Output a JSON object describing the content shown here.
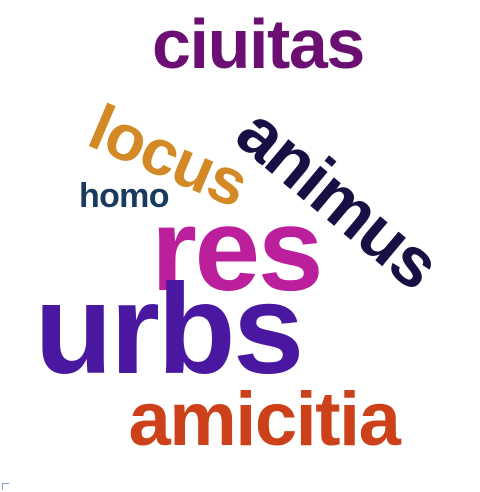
{
  "words": {
    "ciuitas": {
      "text": "ciuitas",
      "color": "#6b0f72"
    },
    "animus": {
      "text": "animus",
      "color": "#1a0f45"
    },
    "locus": {
      "text": "locus",
      "color": "#d38a26"
    },
    "homo": {
      "text": "homo",
      "color": "#173a5e"
    },
    "res": {
      "text": "res",
      "color": "#bb1f9c"
    },
    "urbs": {
      "text": "urbs",
      "color": "#4a17a0"
    },
    "amicitia": {
      "text": "amicitia",
      "color": "#cc4119"
    }
  }
}
